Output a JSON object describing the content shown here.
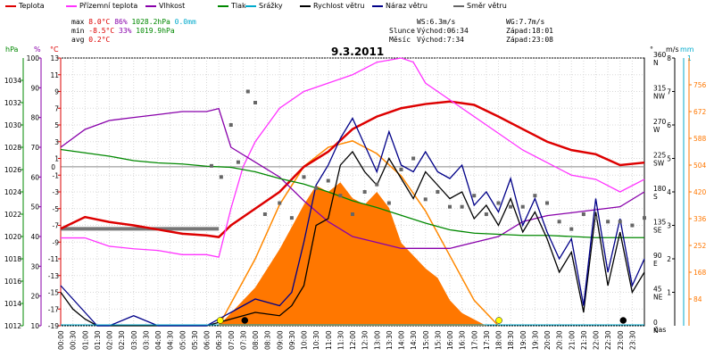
{
  "legend": [
    {
      "label": "Teplota",
      "color": "#dd0000"
    },
    {
      "label": "Přízemní teplota",
      "color": "#ff33ff"
    },
    {
      "label": "Vlhkost",
      "color": "#8800aa"
    },
    {
      "label": "Tlak",
      "color": "#008800"
    },
    {
      "label": "Srážky",
      "color": "#00aacc"
    },
    {
      "label": "Rychlost větru",
      "color": "#000000"
    },
    {
      "label": "Náraz větru",
      "color": "#000088"
    },
    {
      "label": "Směr větru",
      "color": "#666666"
    }
  ],
  "stats": {
    "max_label": "max",
    "max_temp": "8.0°C",
    "max_hum": "86%",
    "max_press": "1028.2hPa",
    "max_rain": "0.0mm",
    "min_label": "min",
    "min_temp": "-8.5°C",
    "min_hum": "33%",
    "min_press": "1019.9hPa",
    "avg_label": "avg",
    "avg_temp": "0.2°C"
  },
  "info": {
    "ws": "WS:6.3m/s",
    "wg": "WG:7.7m/s",
    "sun_label": "Slunce",
    "sun_rise": "Východ:06:34",
    "sun_set": "Západ:18:01",
    "moon_label": "Měsíc",
    "moon_rise": "Východ:7:34",
    "moon_set": "Západ:23:08"
  },
  "chart_data": {
    "type": "line",
    "title": "9.3.2011",
    "xlabel": "čas",
    "x_ticks": [
      "00:00",
      "00:30",
      "01:00",
      "01:30",
      "02:00",
      "02:30",
      "03:00",
      "03:30",
      "04:00",
      "04:30",
      "05:00",
      "05:30",
      "06:00",
      "06:30",
      "07:00",
      "07:30",
      "08:00",
      "08:30",
      "09:00",
      "09:30",
      "10:00",
      "10:30",
      "11:00",
      "11:30",
      "12:00",
      "12:30",
      "13:00",
      "13:30",
      "14:00",
      "14:30",
      "15:00",
      "15:30",
      "16:00",
      "16:30",
      "17:00",
      "17:30",
      "18:00",
      "18:30",
      "19:00",
      "19:30",
      "20:00",
      "20:30",
      "21:00",
      "21:30",
      "22:00",
      "22:30",
      "23:00",
      "23:30"
    ],
    "axes": {
      "pressure": {
        "label": "hPa",
        "range": [
          1012,
          1036
        ],
        "ticks": [
          1012,
          1014,
          1016,
          1018,
          1020,
          1022,
          1024,
          1026,
          1028,
          1030,
          1032,
          1034
        ],
        "color": "#008800"
      },
      "humidity": {
        "label": "%",
        "range": [
          10,
          100
        ],
        "ticks": [
          10,
          20,
          30,
          40,
          50,
          60,
          70,
          80,
          90,
          100
        ],
        "color": "#8800aa"
      },
      "temperature": {
        "label": "°C",
        "range": [
          -19,
          13
        ],
        "ticks": [
          -19,
          -17,
          -15,
          -13,
          -11,
          -9,
          -7,
          -5,
          -3,
          -1,
          1,
          3,
          5,
          7,
          9,
          11,
          13
        ],
        "zero_label": "0",
        "color": "#dd0000"
      },
      "direction": {
        "label": "°",
        "range": [
          0,
          360
        ],
        "ticks": [
          {
            "v": 0,
            "l": "0",
            "d": "N"
          },
          {
            "v": 45,
            "l": "45",
            "d": "NE"
          },
          {
            "v": 90,
            "l": "90",
            "d": "E"
          },
          {
            "v": 135,
            "l": "135",
            "d": "SE"
          },
          {
            "v": 180,
            "l": "180",
            "d": "S"
          },
          {
            "v": 225,
            "l": "225",
            "d": "SW"
          },
          {
            "v": 270,
            "l": "270",
            "d": "W"
          },
          {
            "v": 315,
            "l": "315",
            "d": "NW"
          },
          {
            "v": 360,
            "l": "360",
            "d": "N"
          }
        ],
        "color": "#555555"
      },
      "wind": {
        "label": "m/s",
        "range": [
          0,
          8
        ],
        "ticks": [
          1,
          2,
          3,
          4,
          5,
          6,
          7,
          8
        ],
        "color": "#000000"
      },
      "rain": {
        "label": "mm",
        "range": [
          0,
          1
        ],
        "ticks": [
          1
        ],
        "color": "#00aacc"
      },
      "solar": {
        "label": "",
        "range": [
          0,
          840
        ],
        "ticks": [
          84,
          168,
          252,
          336,
          420,
          504,
          588,
          672,
          756
        ],
        "color": "#ff7700"
      }
    },
    "series": [
      {
        "name": "Teplota",
        "axis": "temperature",
        "color": "#dd0000",
        "x": [
          0,
          1,
          2,
          3,
          4,
          5,
          6,
          6.5,
          7,
          8,
          9,
          10,
          11,
          12,
          13,
          14,
          15,
          16,
          17,
          18,
          19,
          20,
          21,
          22,
          23,
          24
        ],
        "y": [
          -7.4,
          -6,
          -6.6,
          -7,
          -7.5,
          -8,
          -8.2,
          -8.4,
          -7,
          -5,
          -3,
          0,
          1.8,
          4.5,
          6,
          7,
          7.5,
          7.8,
          7.4,
          6,
          4.5,
          3,
          2,
          1.5,
          0.2,
          0.5
        ]
      },
      {
        "name": "Přízemní teplota",
        "axis": "temperature",
        "color": "#ff33ff",
        "x": [
          0,
          1,
          2,
          3,
          4,
          5,
          6,
          6.5,
          7,
          7.5,
          8,
          9,
          10,
          11,
          12,
          13,
          14,
          14.5,
          15,
          16,
          17,
          18,
          19,
          20,
          21,
          22,
          23,
          24
        ],
        "y": [
          -8.5,
          -8.5,
          -9.5,
          -9.8,
          -10,
          -10.5,
          -10.5,
          -10.8,
          -5,
          0,
          3,
          7,
          9,
          10,
          11,
          12.5,
          13,
          12.5,
          10,
          8,
          6,
          4,
          2,
          0.5,
          -1,
          -1.5,
          -3,
          -1.5
        ]
      },
      {
        "name": "Vlhkost",
        "axis": "humidity",
        "color": "#8800aa",
        "x": [
          0,
          1,
          2,
          3,
          4,
          5,
          6,
          6.5,
          7,
          8,
          9,
          10,
          11,
          12,
          13,
          14,
          15,
          16,
          17,
          18,
          19,
          20,
          21,
          22,
          23,
          24
        ],
        "y": [
          70,
          76,
          79,
          80,
          81,
          82,
          82,
          83,
          70,
          65,
          60,
          52,
          45,
          40,
          38,
          36,
          36,
          36,
          38,
          40,
          45,
          47,
          48,
          49,
          50,
          55
        ]
      },
      {
        "name": "Tlak",
        "axis": "pressure",
        "color": "#008800",
        "x": [
          0,
          1,
          2,
          3,
          4,
          5,
          6,
          7,
          8,
          9,
          10,
          11,
          12,
          13,
          14,
          15,
          16,
          17,
          18,
          19,
          20,
          21,
          22,
          23,
          24
        ],
        "y": [
          1027.8,
          1027.5,
          1027.2,
          1026.8,
          1026.6,
          1026.5,
          1026.3,
          1026.2,
          1025.8,
          1025.2,
          1024.7,
          1024.0,
          1023.2,
          1022.6,
          1021.9,
          1021.2,
          1020.6,
          1020.3,
          1020.2,
          1020.1,
          1020.1,
          1020.0,
          1019.9,
          1019.9,
          1019.9
        ]
      },
      {
        "name": "Rychlost větru",
        "axis": "wind",
        "color": "#000000",
        "x": [
          0,
          0.5,
          1,
          1.5,
          2,
          3,
          4,
          5,
          6,
          7,
          8,
          9,
          9.5,
          10,
          10.5,
          11,
          11.5,
          12,
          12.5,
          13,
          13.5,
          14,
          14.5,
          15,
          15.5,
          16,
          16.5,
          17,
          17.5,
          18,
          18.5,
          19,
          19.5,
          20,
          20.5,
          21,
          21.5,
          22,
          22.5,
          23,
          23.5,
          24
        ],
        "y": [
          1,
          0.5,
          0.2,
          0,
          0,
          0,
          0,
          0,
          0,
          0.2,
          0.4,
          0.3,
          0.6,
          1.2,
          3,
          3.2,
          4.8,
          5.2,
          4.6,
          4.2,
          5.0,
          4.4,
          3.8,
          4.6,
          4.2,
          3.8,
          4.0,
          3.2,
          3.6,
          3.0,
          3.8,
          2.8,
          3.4,
          2.6,
          1.6,
          2.2,
          0.4,
          3.4,
          1.2,
          2.8,
          1.0,
          1.6
        ]
      },
      {
        "name": "Náraz větru",
        "axis": "wind",
        "color": "#000088",
        "x": [
          0,
          0.5,
          1,
          1.5,
          2,
          3,
          4,
          5,
          6,
          7,
          8,
          9,
          9.5,
          10,
          10.5,
          11,
          11.5,
          12,
          12.5,
          13,
          13.5,
          14,
          14.5,
          15,
          15.5,
          16,
          16.5,
          17,
          17.5,
          18,
          18.5,
          19,
          19.5,
          20,
          20.5,
          21,
          21.5,
          22,
          22.5,
          23,
          23.5,
          24
        ],
        "y": [
          1.2,
          0.8,
          0.4,
          0,
          0,
          0.3,
          0,
          0,
          0,
          0.4,
          0.8,
          0.6,
          1,
          2.5,
          4.2,
          4.8,
          5.6,
          6.2,
          5.4,
          4.6,
          5.8,
          4.8,
          4.6,
          5.2,
          4.6,
          4.4,
          4.8,
          3.6,
          4.0,
          3.4,
          4.4,
          3.0,
          3.8,
          2.8,
          2.0,
          2.6,
          0.6,
          3.8,
          1.6,
          3.2,
          1.2,
          2.0
        ]
      },
      {
        "name": "Směr větru",
        "axis": "direction",
        "color": "#666666",
        "marker": "square",
        "x": [
          6.2,
          6.6,
          7,
          7.3,
          7.7,
          8,
          8.4,
          9,
          9.5,
          10,
          10.5,
          11,
          11.5,
          12,
          12.5,
          13,
          13.5,
          14,
          14.5,
          15,
          15.5,
          16,
          16.5,
          17,
          17.5,
          18,
          18.5,
          19,
          19.5,
          20,
          20.5,
          21,
          21.5,
          22,
          22.5,
          23,
          23.5,
          24
        ],
        "y": [
          215,
          200,
          270,
          220,
          315,
          300,
          150,
          165,
          145,
          200,
          185,
          195,
          175,
          150,
          180,
          190,
          165,
          210,
          225,
          170,
          180,
          160,
          160,
          175,
          150,
          165,
          160,
          160,
          175,
          165,
          140,
          130,
          150,
          145,
          140,
          140,
          135,
          145
        ]
      },
      {
        "name": "Solar",
        "axis": "solar",
        "color": "#ff7700",
        "type": "area",
        "x": [
          6.5,
          7,
          8,
          9,
          10,
          10.5,
          11,
          11.5,
          12,
          12.5,
          13,
          13.5,
          14,
          14.5,
          15,
          15.5,
          16,
          16.5,
          17,
          17.5
        ],
        "y": [
          0,
          40,
          120,
          240,
          380,
          440,
          420,
          450,
          400,
          380,
          420,
          370,
          260,
          220,
          180,
          150,
          80,
          40,
          20,
          0
        ]
      },
      {
        "name": "Solar theoretical",
        "axis": "solar",
        "color": "#ff8800",
        "type": "curve",
        "x": [
          6.5,
          8,
          9,
          10,
          11,
          12,
          13,
          14,
          15,
          16,
          17,
          18
        ],
        "y": [
          0,
          210,
          380,
          500,
          560,
          580,
          540,
          470,
          360,
          220,
          80,
          0
        ]
      },
      {
        "name": "Srážky",
        "axis": "rain",
        "color": "#00aacc",
        "x": [
          0,
          24
        ],
        "y": [
          0,
          0
        ]
      }
    ],
    "markers": [
      {
        "kind": "sunrise",
        "x": 6.56,
        "color": "#ffff00"
      },
      {
        "kind": "sunset",
        "x": 18.02,
        "color": "#ffff00"
      },
      {
        "kind": "moonrise",
        "x": 7.57,
        "color": "#000000"
      },
      {
        "kind": "moonset",
        "x": 23.13,
        "color": "#000000"
      }
    ],
    "legend_position": "top",
    "grid": true
  }
}
